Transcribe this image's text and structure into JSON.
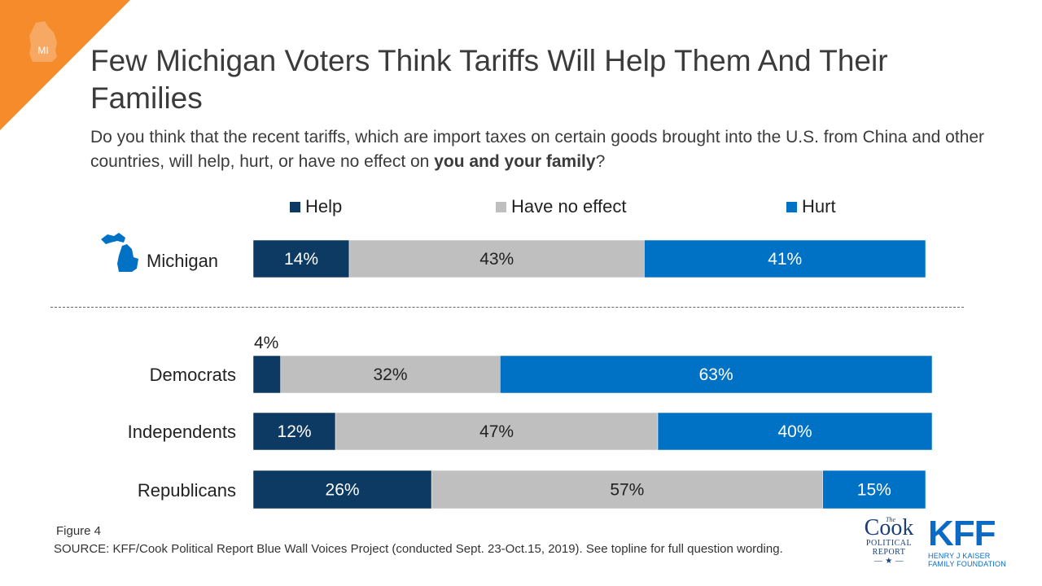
{
  "header": {
    "badge": "MI",
    "title": "Few Michigan Voters Think Tariffs Will Help Them And Their Families",
    "subtitle_pre": "Do you think that the recent tariffs, which are import taxes on certain goods brought into the U.S. from China and other countries, will help, hurt, or have no effect on ",
    "subtitle_bold": "you and your family",
    "subtitle_post": "?"
  },
  "colors": {
    "help": "#0d3a62",
    "no_effect": "#bfbfbf",
    "hurt": "#0072c6",
    "corner": "#f58b2b"
  },
  "chart_data": {
    "type": "bar",
    "orientation": "horizontal",
    "stacked": true,
    "categories": [
      "Michigan",
      "Democrats",
      "Independents",
      "Republicans"
    ],
    "series": [
      {
        "name": "Help",
        "values": [
          14,
          4,
          12,
          26
        ],
        "labels": [
          "14%",
          "4%",
          "12%",
          "26%"
        ]
      },
      {
        "name": "Have no effect",
        "values": [
          43,
          32,
          47,
          57
        ],
        "labels": [
          "43%",
          "32%",
          "47%",
          "57%"
        ]
      },
      {
        "name": "Hurt",
        "values": [
          41,
          63,
          40,
          15
        ],
        "labels": [
          "41%",
          "63%",
          "40%",
          "15%"
        ]
      }
    ],
    "legend_position": "top"
  },
  "footer": {
    "figure": "Figure 4",
    "source": "SOURCE: KFF/Cook Political Report Blue Wall Voices Project (conducted Sept. 23-Oct.15, 2019). See topline for full question wording.",
    "cook_the": "The",
    "cook_name": "Cook",
    "cook_line1": "POLITICAL",
    "cook_line2": "REPORT",
    "kff_name": "KFF",
    "kff_line1": "HENRY J KAISER",
    "kff_line2": "FAMILY FOUNDATION"
  }
}
